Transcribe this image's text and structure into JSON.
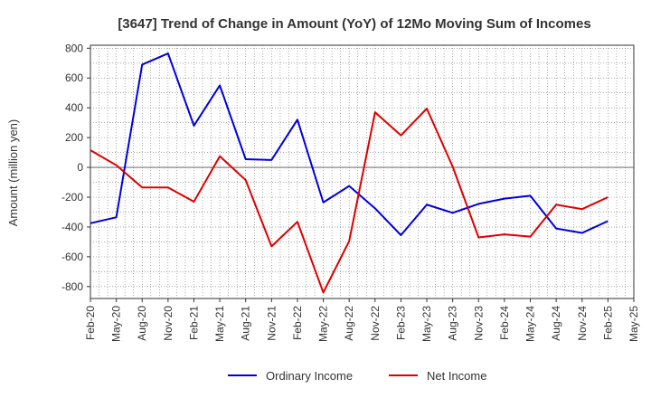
{
  "chart_data": {
    "type": "line",
    "title": "[3647]  Trend of Change in Amount (YoY) of 12Mo Moving Sum of Incomes",
    "ylabel": "Amount (million yen)",
    "xlabel": "",
    "ylim": [
      -880,
      820
    ],
    "yticks": [
      800,
      600,
      400,
      200,
      0,
      -200,
      -400,
      -600,
      -800
    ],
    "categories": [
      "Feb-20",
      "May-20",
      "Aug-20",
      "Nov-20",
      "Feb-21",
      "May-21",
      "Aug-21",
      "Nov-21",
      "Feb-22",
      "May-22",
      "Aug-22",
      "Nov-22",
      "Feb-23",
      "May-23",
      "Aug-23",
      "Nov-23",
      "Feb-24",
      "May-24",
      "Aug-24",
      "Nov-24",
      "Feb-25",
      "May-25"
    ],
    "grid": true,
    "legend_position": "bottom",
    "series": [
      {
        "name": "Ordinary Income",
        "color": "#0000dd",
        "values": [
          -375,
          -335,
          690,
          765,
          280,
          550,
          55,
          50,
          320,
          -235,
          -125,
          -275,
          -455,
          -250,
          -305,
          -245,
          -210,
          -190,
          -410,
          -440,
          -360,
          null
        ]
      },
      {
        "name": "Net Income",
        "color": "#dd0000",
        "values": [
          115,
          15,
          -135,
          -135,
          -230,
          75,
          -85,
          -530,
          -365,
          -840,
          -495,
          370,
          215,
          395,
          5,
          -470,
          -450,
          -465,
          -250,
          -280,
          -200,
          null
        ]
      }
    ]
  }
}
